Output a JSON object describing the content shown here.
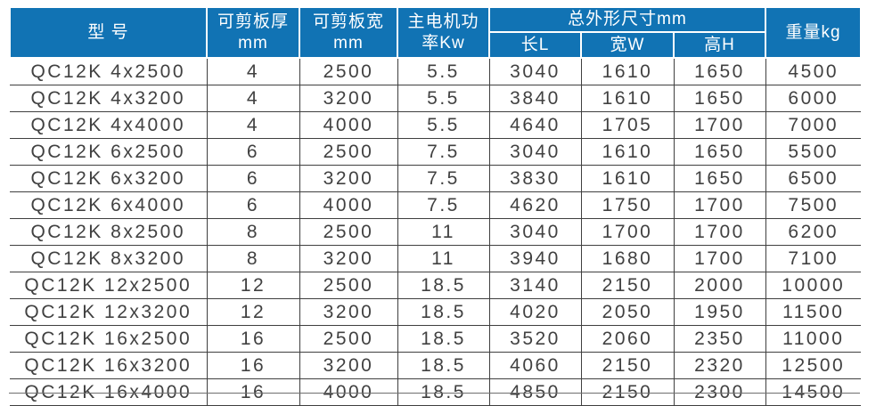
{
  "colors": {
    "header_bg": "#1173b4",
    "header_text": "#ffffff",
    "body_text": "#414141",
    "grid_line": "#3f3f3f"
  },
  "table": {
    "header": {
      "model": "型 号",
      "thickness": "可剪板厚\nmm",
      "cut_width": "可剪板宽\nmm",
      "power": "主电机功\n率Kw",
      "dimensions_group": "总外形尺寸mm",
      "length": "长L",
      "width": "宽W",
      "height": "高H",
      "weight": "重量kg"
    },
    "rows": [
      {
        "model": "QC12K 4x2500",
        "thickness": "4",
        "cut_width": "2500",
        "power": "5.5",
        "length": "3040",
        "width": "1610",
        "height": "1650",
        "weight": "4500"
      },
      {
        "model": "QC12K 4x3200",
        "thickness": "4",
        "cut_width": "3200",
        "power": "5.5",
        "length": "3840",
        "width": "1610",
        "height": "1650",
        "weight": "6000"
      },
      {
        "model": "QC12K 4x4000",
        "thickness": "4",
        "cut_width": "4000",
        "power": "5.5",
        "length": "4640",
        "width": "1705",
        "height": "1700",
        "weight": "7000"
      },
      {
        "model": "QC12K 6x2500",
        "thickness": "6",
        "cut_width": "2500",
        "power": "7.5",
        "length": "3040",
        "width": "1610",
        "height": "1650",
        "weight": "5500"
      },
      {
        "model": "QC12K 6x3200",
        "thickness": "6",
        "cut_width": "3200",
        "power": "7.5",
        "length": "3830",
        "width": "1610",
        "height": "1650",
        "weight": "6500"
      },
      {
        "model": "QC12K 6x4000",
        "thickness": "6",
        "cut_width": "4000",
        "power": "7.5",
        "length": "4620",
        "width": "1750",
        "height": "1700",
        "weight": "7500"
      },
      {
        "model": "QC12K 8x2500",
        "thickness": "8",
        "cut_width": "2500",
        "power": "11",
        "length": "3040",
        "width": "1700",
        "height": "1700",
        "weight": "6200"
      },
      {
        "model": "QC12K 8x3200",
        "thickness": "8",
        "cut_width": "3200",
        "power": "11",
        "length": "3940",
        "width": "1680",
        "height": "1700",
        "weight": "7100"
      },
      {
        "model": "QC12K 12x2500",
        "thickness": "12",
        "cut_width": "2500",
        "power": "18.5",
        "length": "3140",
        "width": "2150",
        "height": "2000",
        "weight": "10000"
      },
      {
        "model": "QC12K 12x3200",
        "thickness": "12",
        "cut_width": "3200",
        "power": "18.5",
        "length": "4020",
        "width": "2050",
        "height": "1950",
        "weight": "11500"
      },
      {
        "model": "QC12K 16x2500",
        "thickness": "16",
        "cut_width": "2500",
        "power": "18.5",
        "length": "3520",
        "width": "2060",
        "height": "2350",
        "weight": "11000"
      },
      {
        "model": "QC12K 16x3200",
        "thickness": "16",
        "cut_width": "3200",
        "power": "18.5",
        "length": "4060",
        "width": "2150",
        "height": "2320",
        "weight": "12500"
      },
      {
        "model": "QC12K 16x4000",
        "thickness": "16",
        "cut_width": "4000",
        "power": "18.5",
        "length": "4850",
        "width": "2150",
        "height": "2300",
        "weight": "14500"
      }
    ]
  },
  "chart_data": {
    "type": "table",
    "title": "",
    "columns": [
      "型号",
      "可剪板厚mm",
      "可剪板宽mm",
      "主电机功率Kw",
      "总外形尺寸mm 长L",
      "总外形尺寸mm 宽W",
      "总外形尺寸mm 高H",
      "重量kg"
    ],
    "rows": [
      [
        "QC12K 4x2500",
        4,
        2500,
        5.5,
        3040,
        1610,
        1650,
        4500
      ],
      [
        "QC12K 4x3200",
        4,
        3200,
        5.5,
        3840,
        1610,
        1650,
        6000
      ],
      [
        "QC12K 4x4000",
        4,
        4000,
        5.5,
        4640,
        1705,
        1700,
        7000
      ],
      [
        "QC12K 6x2500",
        6,
        2500,
        7.5,
        3040,
        1610,
        1650,
        5500
      ],
      [
        "QC12K 6x3200",
        6,
        3200,
        7.5,
        3830,
        1610,
        1650,
        6500
      ],
      [
        "QC12K 6x4000",
        6,
        4000,
        7.5,
        4620,
        1750,
        1700,
        7500
      ],
      [
        "QC12K 8x2500",
        8,
        2500,
        11,
        3040,
        1700,
        1700,
        6200
      ],
      [
        "QC12K 8x3200",
        8,
        3200,
        11,
        3940,
        1680,
        1700,
        7100
      ],
      [
        "QC12K 12x2500",
        12,
        2500,
        18.5,
        3140,
        2150,
        2000,
        10000
      ],
      [
        "QC12K 12x3200",
        12,
        3200,
        18.5,
        4020,
        2050,
        1950,
        11500
      ],
      [
        "QC12K 16x2500",
        16,
        2500,
        18.5,
        3520,
        2060,
        2350,
        11000
      ],
      [
        "QC12K 16x3200",
        16,
        3200,
        18.5,
        4060,
        2150,
        2320,
        12500
      ],
      [
        "QC12K 16x4000",
        16,
        4000,
        18.5,
        4850,
        2150,
        2300,
        14500
      ]
    ]
  }
}
